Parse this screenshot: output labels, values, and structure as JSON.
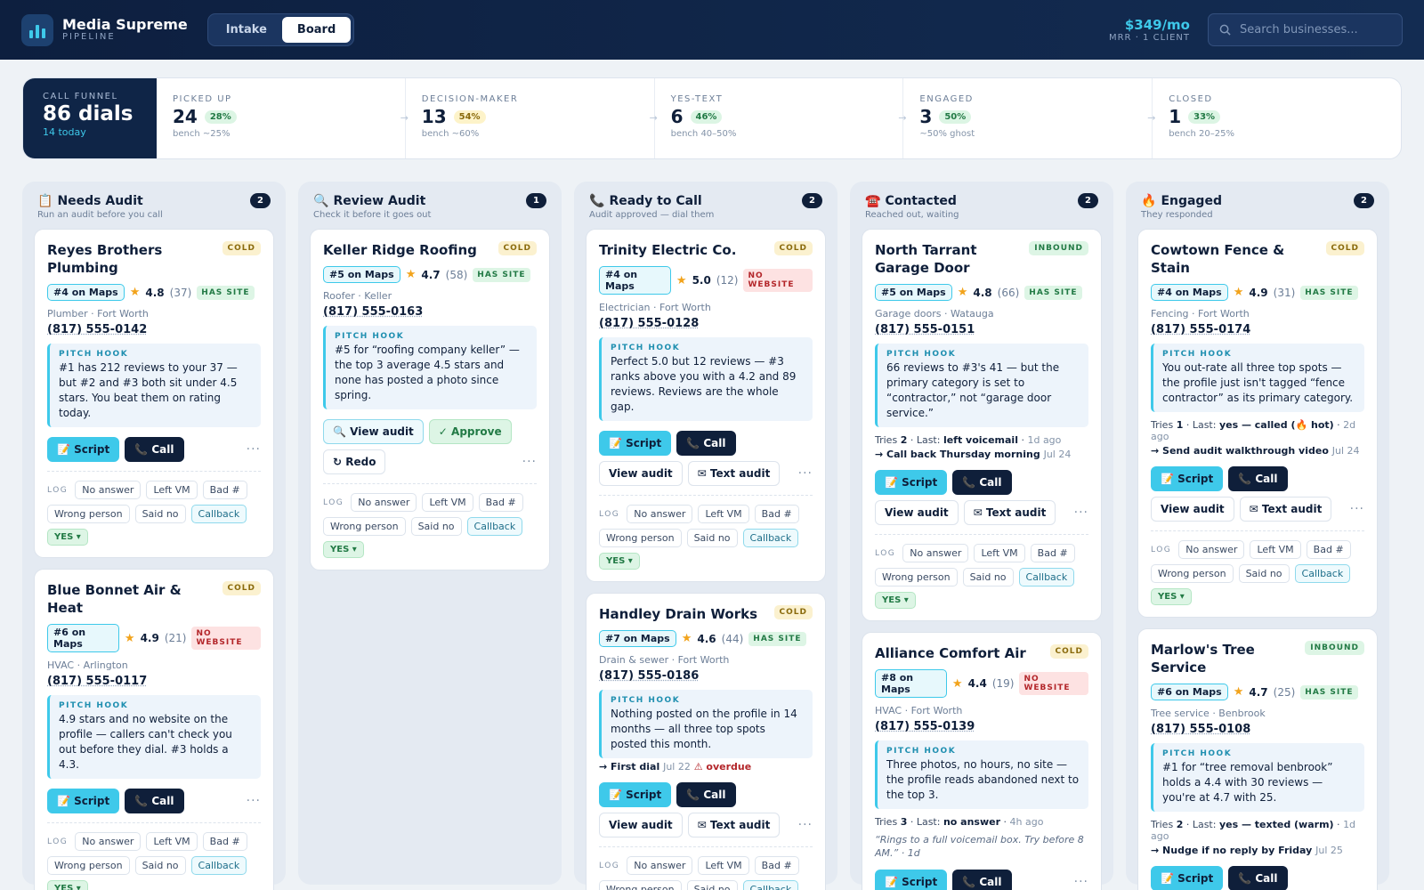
{
  "header": {
    "brand": "Media Supreme",
    "subtitle": "PIPELINE",
    "tabs": [
      "Intake",
      "Board"
    ],
    "active_tab": "Board",
    "mrr": "$349/mo",
    "mrr_sub": "MRR · 1 CLIENT",
    "search_placeholder": "Search businesses..."
  },
  "funnel": {
    "label": "CALL FUNNEL",
    "value": "86 dials",
    "sub": "14 today",
    "stages": [
      {
        "label": "PICKED UP",
        "num": "24",
        "pct": "28%",
        "pct_style": "green",
        "bench": "bench ~25%"
      },
      {
        "label": "DECISION-MAKER",
        "num": "13",
        "pct": "54%",
        "pct_style": "yellow",
        "bench": "bench ~60%"
      },
      {
        "label": "YES-TEXT",
        "num": "6",
        "pct": "46%",
        "pct_style": "green",
        "bench": "bench 40–50%"
      },
      {
        "label": "ENGAGED",
        "num": "3",
        "pct": "50%",
        "pct_style": "green",
        "bench": "~50% ghost"
      },
      {
        "label": "CLOSED",
        "num": "1",
        "pct": "33%",
        "pct_style": "green",
        "bench": "bench 20–25%"
      }
    ]
  },
  "labels": {
    "pitch_hook": "PITCH HOOK",
    "log": "LOG",
    "script": "Script",
    "call": "Call",
    "view_audit": "View audit",
    "text_audit": "Text audit",
    "approve": "Approve",
    "redo": "Redo",
    "log_chips": [
      "No answer",
      "Left VM",
      "Bad #",
      "Wrong person",
      "Said no",
      "Callback"
    ],
    "yes": "YES"
  },
  "columns": [
    {
      "icon": "clipboard-icon",
      "emoji": "📋",
      "title": "Needs Audit",
      "count": "2",
      "sub": "Run an audit before you call",
      "cards": [
        {
          "name": "Reyes Brothers Plumbing",
          "tag": "COLD",
          "maps": "#4 on Maps",
          "rating": "4.8",
          "reviews": "(37)",
          "site": "HAS SITE",
          "trade": "Plumber · Fort Worth",
          "phone": "(817) 555-0142",
          "hook": "#1 has 212 reviews to your 37 — but #2 and #3 both sit under 4.5 stars. You beat them on rating today.",
          "buttons": [
            "script",
            "call"
          ],
          "log": true
        },
        {
          "name": "Blue Bonnet Air & Heat",
          "tag": "COLD",
          "maps": "#6 on Maps",
          "rating": "4.9",
          "reviews": "(21)",
          "site": "NO WEBSITE",
          "trade": "HVAC · Arlington",
          "phone": "(817) 555-0117",
          "hook": "4.9 stars and no website on the profile — callers can't check you out before they dial. #3 holds a 4.3.",
          "buttons": [
            "script",
            "call"
          ],
          "log": true
        }
      ]
    },
    {
      "icon": "magnifier-icon",
      "emoji": "🔍",
      "title": "Review Audit",
      "count": "1",
      "sub": "Check it before it goes out",
      "cards": [
        {
          "name": "Keller Ridge Roofing",
          "tag": "COLD",
          "maps": "#5 on Maps",
          "rating": "4.7",
          "reviews": "(58)",
          "site": "HAS SITE",
          "trade": "Roofer · Keller",
          "phone": "(817) 555-0163",
          "hook": "#5 for “roofing company keller” — the top 3 average 4.5 stars and none has posted a photo since spring.",
          "buttons": [
            "view",
            "approve",
            "redo"
          ],
          "log": true
        }
      ]
    },
    {
      "icon": "phone-icon",
      "emoji": "📞",
      "title": "Ready to Call",
      "count": "2",
      "sub": "Audit approved — dial them",
      "cards": [
        {
          "name": "Trinity Electric Co.",
          "tag": "COLD",
          "maps": "#4 on Maps",
          "rating": "5.0",
          "reviews": "(12)",
          "site": "NO WEBSITE",
          "trade": "Electrician · Fort Worth",
          "phone": "(817) 555-0128",
          "hook": "Perfect 5.0 but 12 reviews — #3 ranks above you with a 4.2 and 89 reviews. Reviews are the whole gap.",
          "buttons": [
            "script",
            "call",
            "view",
            "text"
          ],
          "log": true
        },
        {
          "name": "Handley Drain Works",
          "tag": "COLD",
          "maps": "#7 on Maps",
          "rating": "4.6",
          "reviews": "(44)",
          "site": "HAS SITE",
          "trade": "Drain & sewer · Fort Worth",
          "phone": "(817) 555-0186",
          "hook": "Nothing posted on the profile in 14 months — all three top spots posted this month.",
          "next": "First dial",
          "next_date": "Jul 22",
          "next_warn": "overdue",
          "buttons": [
            "script",
            "call",
            "view",
            "text"
          ],
          "log": true
        }
      ]
    },
    {
      "icon": "telephone-icon",
      "emoji": "☎️",
      "title": "Contacted",
      "count": "2",
      "sub": "Reached out, waiting",
      "cards": [
        {
          "name": "North Tarrant Garage Door",
          "tag": "INBOUND",
          "maps": "#5 on Maps",
          "rating": "4.8",
          "reviews": "(66)",
          "site": "HAS SITE",
          "trade": "Garage doors · Watauga",
          "phone": "(817) 555-0151",
          "hook": "66 reviews to #3's 41 — but the primary category is set to “contractor,” not “garage door service.”",
          "tries": "2",
          "last": "left voicemail",
          "ago": "1d ago",
          "next": "Call back Thursday morning",
          "next_date": "Jul 24",
          "buttons": [
            "script",
            "call",
            "view",
            "text"
          ],
          "log": true
        },
        {
          "name": "Alliance Comfort Air",
          "tag": "COLD",
          "maps": "#8 on Maps",
          "rating": "4.4",
          "reviews": "(19)",
          "site": "NO WEBSITE",
          "trade": "HVAC · Fort Worth",
          "phone": "(817) 555-0139",
          "hook": "Three photos, no hours, no site — the profile reads abandoned next to the top 3.",
          "tries": "3",
          "last": "no answer",
          "ago": "4h ago",
          "note": "“Rings to a full voicemail box. Try before 8 AM.” · 1d",
          "buttons": [
            "script",
            "call"
          ],
          "log": false
        }
      ]
    },
    {
      "icon": "fire-icon",
      "emoji": "🔥",
      "title": "Engaged",
      "count": "2",
      "sub": "They responded",
      "cards": [
        {
          "name": "Cowtown Fence & Stain",
          "tag": "COLD",
          "maps": "#4 on Maps",
          "rating": "4.9",
          "reviews": "(31)",
          "site": "HAS SITE",
          "trade": "Fencing · Fort Worth",
          "phone": "(817) 555-0174",
          "hook": "You out-rate all three top spots — the profile just isn't tagged “fence contractor” as its primary category.",
          "tries": "1",
          "last": "yes — called (🔥 hot)",
          "ago": "2d ago",
          "next": "Send audit walkthrough video",
          "next_date": "Jul 24",
          "buttons": [
            "script",
            "call",
            "view",
            "text"
          ],
          "log": true
        },
        {
          "name": "Marlow's Tree Service",
          "tag": "INBOUND",
          "maps": "#6 on Maps",
          "rating": "4.7",
          "reviews": "(25)",
          "site": "HAS SITE",
          "trade": "Tree service · Benbrook",
          "phone": "(817) 555-0108",
          "hook": "#1 for “tree removal benbrook” holds a 4.4 with 30 reviews — you're at 4.7 with 25.",
          "tries": "2",
          "last": "yes — texted (warm)",
          "ago": "1d ago",
          "next": "Nudge if no reply by Friday",
          "next_date": "Jul 25",
          "buttons": [
            "script",
            "call",
            "view"
          ],
          "log": false
        }
      ]
    }
  ]
}
